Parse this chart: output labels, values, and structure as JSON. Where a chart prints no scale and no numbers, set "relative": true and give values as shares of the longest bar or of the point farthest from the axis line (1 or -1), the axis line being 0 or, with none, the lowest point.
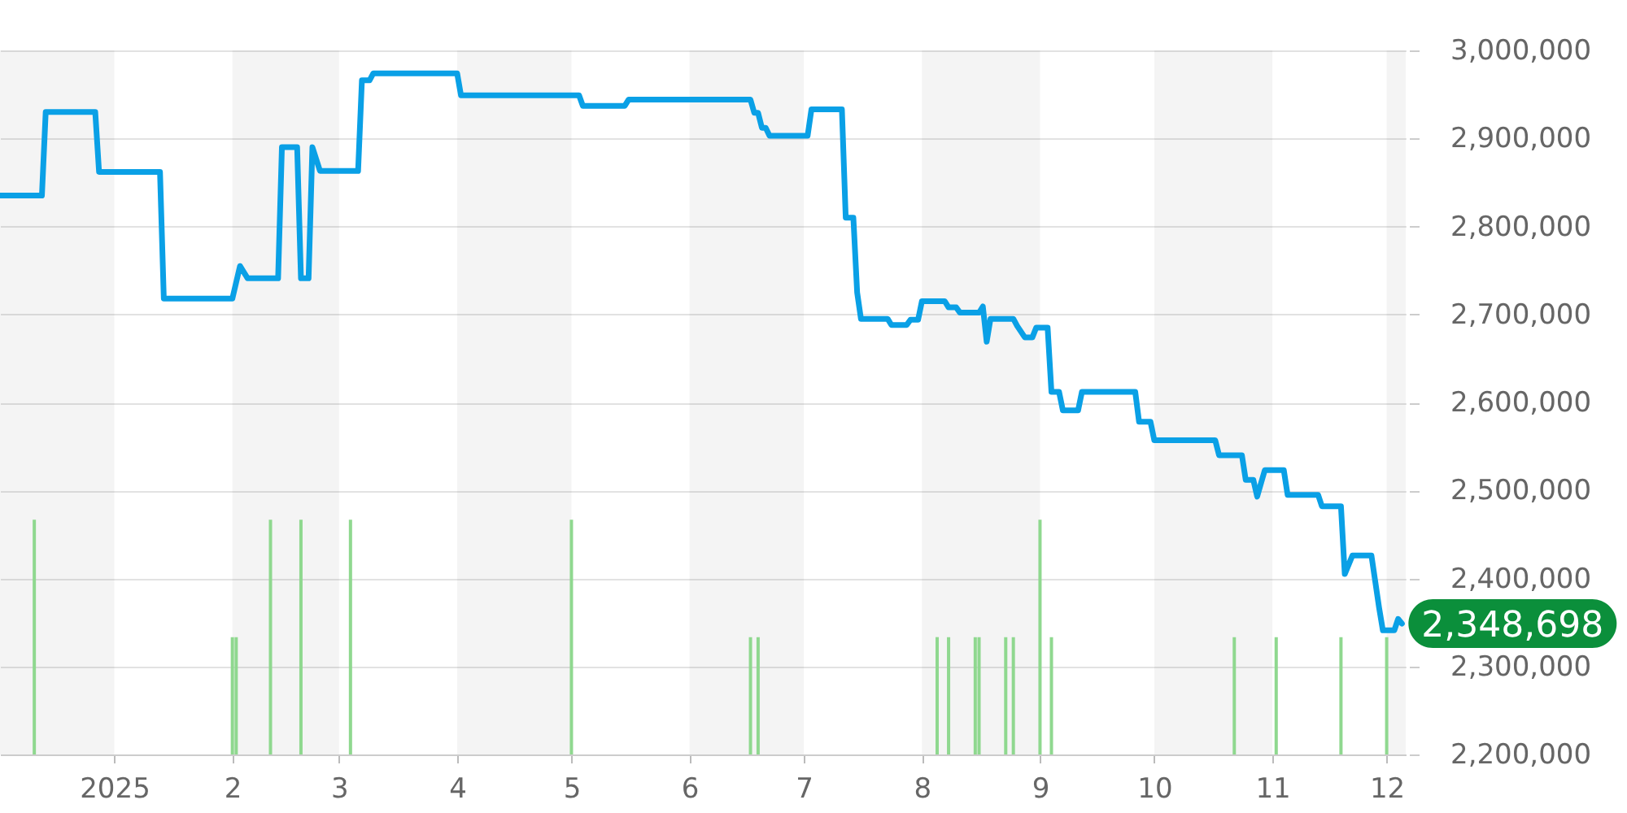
{
  "chart_data": [
    {
      "type": "line",
      "x": [
        "2024-12-02",
        "2024-12-13",
        "2024-12-14",
        "2024-12-27",
        "2024-12-28",
        "2025-01-13",
        "2025-01-14",
        "2025-02-01",
        "2025-02-03",
        "2025-02-05",
        "2025-02-13",
        "2025-02-14",
        "2025-02-18",
        "2025-02-19",
        "2025-02-21",
        "2025-02-22",
        "2025-02-24",
        "2025-03-06",
        "2025-03-07",
        "2025-03-09",
        "2025-03-10",
        "2025-04-01",
        "2025-04-02",
        "2025-05-03",
        "2025-05-04",
        "2025-05-15",
        "2025-05-16",
        "2025-06-17",
        "2025-06-18",
        "2025-06-19",
        "2025-06-20",
        "2025-06-21",
        "2025-06-22",
        "2025-07-02",
        "2025-07-03",
        "2025-07-11",
        "2025-07-12",
        "2025-07-14",
        "2025-07-15",
        "2025-07-16",
        "2025-07-23",
        "2025-07-24",
        "2025-07-28",
        "2025-07-29",
        "2025-07-31",
        "2025-08-01",
        "2025-08-07",
        "2025-08-08",
        "2025-08-10",
        "2025-08-11",
        "2025-08-16",
        "2025-08-17",
        "2025-08-18",
        "2025-08-19",
        "2025-08-25",
        "2025-08-26",
        "2025-08-28",
        "2025-08-30",
        "2025-08-31",
        "2025-09-03",
        "2025-09-04",
        "2025-09-06",
        "2025-09-07",
        "2025-09-11",
        "2025-09-12",
        "2025-09-26",
        "2025-09-27",
        "2025-09-30",
        "2025-10-01",
        "2025-10-17",
        "2025-10-18",
        "2025-10-24",
        "2025-10-25",
        "2025-10-27",
        "2025-10-28",
        "2025-10-30",
        "2025-11-04",
        "2025-11-05",
        "2025-11-13",
        "2025-11-14",
        "2025-11-19",
        "2025-11-20",
        "2025-11-22",
        "2025-11-27",
        "2025-11-29",
        "2025-11-30",
        "2025-12-03",
        "2025-12-04",
        "2025-12-05"
      ],
      "values": [
        2835000,
        2835000,
        2930000,
        2930000,
        2862000,
        2862000,
        2718000,
        2718000,
        2755000,
        2741000,
        2741000,
        2890000,
        2890000,
        2741000,
        2741000,
        2890000,
        2863000,
        2863000,
        2966000,
        2966000,
        2974000,
        2974000,
        2949000,
        2949000,
        2937000,
        2937000,
        2944000,
        2944000,
        2929000,
        2929000,
        2912000,
        2912000,
        2903000,
        2903000,
        2933000,
        2933000,
        2810000,
        2810000,
        2725000,
        2695000,
        2695000,
        2688000,
        2688000,
        2694000,
        2694000,
        2715000,
        2715000,
        2708000,
        2708000,
        2702000,
        2702000,
        2709000,
        2669000,
        2695000,
        2695000,
        2687000,
        2674000,
        2674000,
        2685000,
        2685000,
        2612000,
        2612000,
        2591000,
        2591000,
        2612000,
        2612000,
        2578000,
        2578000,
        2557000,
        2557000,
        2540000,
        2540000,
        2512000,
        2512000,
        2493000,
        2523000,
        2523000,
        2495000,
        2495000,
        2482000,
        2482000,
        2405000,
        2426000,
        2426000,
        2367000,
        2341000,
        2341000,
        2354000,
        2348698
      ],
      "color": "#0aa0e6",
      "xlim": [
        "2024-12-02",
        "2025-12-06"
      ],
      "xticks": [
        {
          "value": "2025-01-01",
          "label": "2025"
        },
        {
          "value": "2025-02-01",
          "label": "2"
        },
        {
          "value": "2025-03-01",
          "label": "3"
        },
        {
          "value": "2025-04-01",
          "label": "4"
        },
        {
          "value": "2025-05-01",
          "label": "5"
        },
        {
          "value": "2025-06-01",
          "label": "6"
        },
        {
          "value": "2025-07-01",
          "label": "7"
        },
        {
          "value": "2025-08-01",
          "label": "8"
        },
        {
          "value": "2025-09-01",
          "label": "9"
        },
        {
          "value": "2025-10-01",
          "label": "10"
        },
        {
          "value": "2025-11-01",
          "label": "11"
        },
        {
          "value": "2025-12-01",
          "label": "12"
        }
      ],
      "ylim": [
        2200000,
        3000000
      ],
      "yticks": [
        {
          "value": 2200000,
          "label": "2,200,000"
        },
        {
          "value": 2300000,
          "label": "2,300,000"
        },
        {
          "value": 2400000,
          "label": "2,400,000"
        },
        {
          "value": 2500000,
          "label": "2,500,000"
        },
        {
          "value": 2600000,
          "label": "2,600,000"
        },
        {
          "value": 2700000,
          "label": "2,700,000"
        },
        {
          "value": 2800000,
          "label": "2,800,000"
        },
        {
          "value": 2900000,
          "label": "2,900,000"
        },
        {
          "value": 3000000,
          "label": "3,000,000"
        }
      ],
      "grid": "y",
      "bands": [
        {
          "axis": "x",
          "from": "2024-12-02",
          "to": "2025-01-01",
          "color": "#f4f4f4"
        },
        {
          "axis": "x",
          "from": "2025-02-01",
          "to": "2025-03-01",
          "color": "#f4f4f4"
        },
        {
          "axis": "x",
          "from": "2025-04-01",
          "to": "2025-05-01",
          "color": "#f4f4f4"
        },
        {
          "axis": "x",
          "from": "2025-06-01",
          "to": "2025-07-01",
          "color": "#f4f4f4"
        },
        {
          "axis": "x",
          "from": "2025-08-01",
          "to": "2025-09-01",
          "color": "#f4f4f4"
        },
        {
          "axis": "x",
          "from": "2025-10-01",
          "to": "2025-11-01",
          "color": "#f4f4f4"
        },
        {
          "axis": "x",
          "from": "2025-12-01",
          "to": "2025-12-06",
          "color": "#f4f4f4"
        }
      ],
      "annotations": [
        {
          "text": "2,348,698",
          "x": "2025-12-05",
          "y": 2348698
        }
      ]
    },
    {
      "type": "bar",
      "relative": true,
      "x": [
        "2024-12-11",
        "2025-02-01",
        "2025-02-02",
        "2025-02-11",
        "2025-02-19",
        "2025-03-04",
        "2025-05-01",
        "2025-06-17",
        "2025-06-19",
        "2025-08-05",
        "2025-08-08",
        "2025-08-15",
        "2025-08-16",
        "2025-08-23",
        "2025-08-25",
        "2025-09-01",
        "2025-09-04",
        "2025-10-22",
        "2025-11-02",
        "2025-11-19",
        "2025-12-01"
      ],
      "values": [
        1,
        0.5,
        0.5,
        1,
        1,
        1,
        1,
        0.5,
        0.5,
        0.5,
        0.5,
        0.5,
        0.5,
        0.5,
        0.5,
        1,
        0.5,
        0.5,
        0.5,
        0.5,
        0.5
      ],
      "color": "#8fd88f",
      "xlim": [
        "2024-12-02",
        "2025-12-06"
      ],
      "tick_labels": false
    }
  ]
}
